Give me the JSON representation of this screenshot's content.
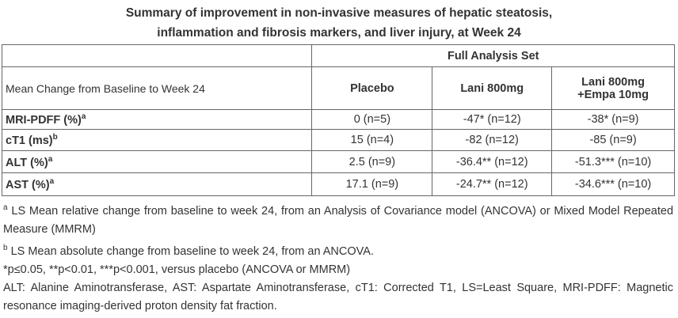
{
  "title_lines": [
    "Summary of improvement in non-invasive measures of hepatic steatosis,",
    "inflammation and fibrosis markers, and liver injury, at Week 24"
  ],
  "table": {
    "group_header": "Full Analysis Set",
    "stub_header": "Mean Change from Baseline to Week 24",
    "columns": [
      [
        "Placebo"
      ],
      [
        "Lani 800mg"
      ],
      [
        "Lani 800mg",
        "+Empa 10mg"
      ]
    ],
    "rows": [
      {
        "label": "MRI-PDFF (%)",
        "sup": "a",
        "cells": [
          "0 (n=5)",
          "-47* (n=12)",
          "-38* (n=9)"
        ]
      },
      {
        "label": "cT1 (ms)",
        "sup": "b",
        "cells": [
          "15 (n=4)",
          "-82 (n=12)",
          "-85 (n=9)"
        ]
      },
      {
        "label": "ALT (%)",
        "sup": "a",
        "cells": [
          "2.5 (n=9)",
          "-36.4** (n=12)",
          "-51.3*** (n=10)"
        ]
      },
      {
        "label": "AST (%)",
        "sup": "a",
        "cells": [
          "17.1 (n=9)",
          "-24.7** (n=12)",
          "-34.6*** (n=10)"
        ]
      }
    ]
  },
  "footnotes": [
    {
      "sup": "a",
      "text": "LS Mean relative change from baseline to week 24, from an Analysis of Covariance model (ANCOVA) or Mixed Model Repeated Measure (MMRM)"
    },
    {
      "sup": "b",
      "text": "LS Mean absolute change from baseline to week 24, from an ANCOVA."
    },
    {
      "text": "*p≤0.05, **p<0.01, ***p<0.001, versus placebo (ANCOVA or MMRM)"
    },
    {
      "text": "ALT: Alanine Aminotransferase, AST: Aspartate Aminotransferase, cT1: Corrected T1, LS=Least Square, MRI-PDFF: Magnetic resonance imaging-derived proton density fat fraction."
    }
  ]
}
